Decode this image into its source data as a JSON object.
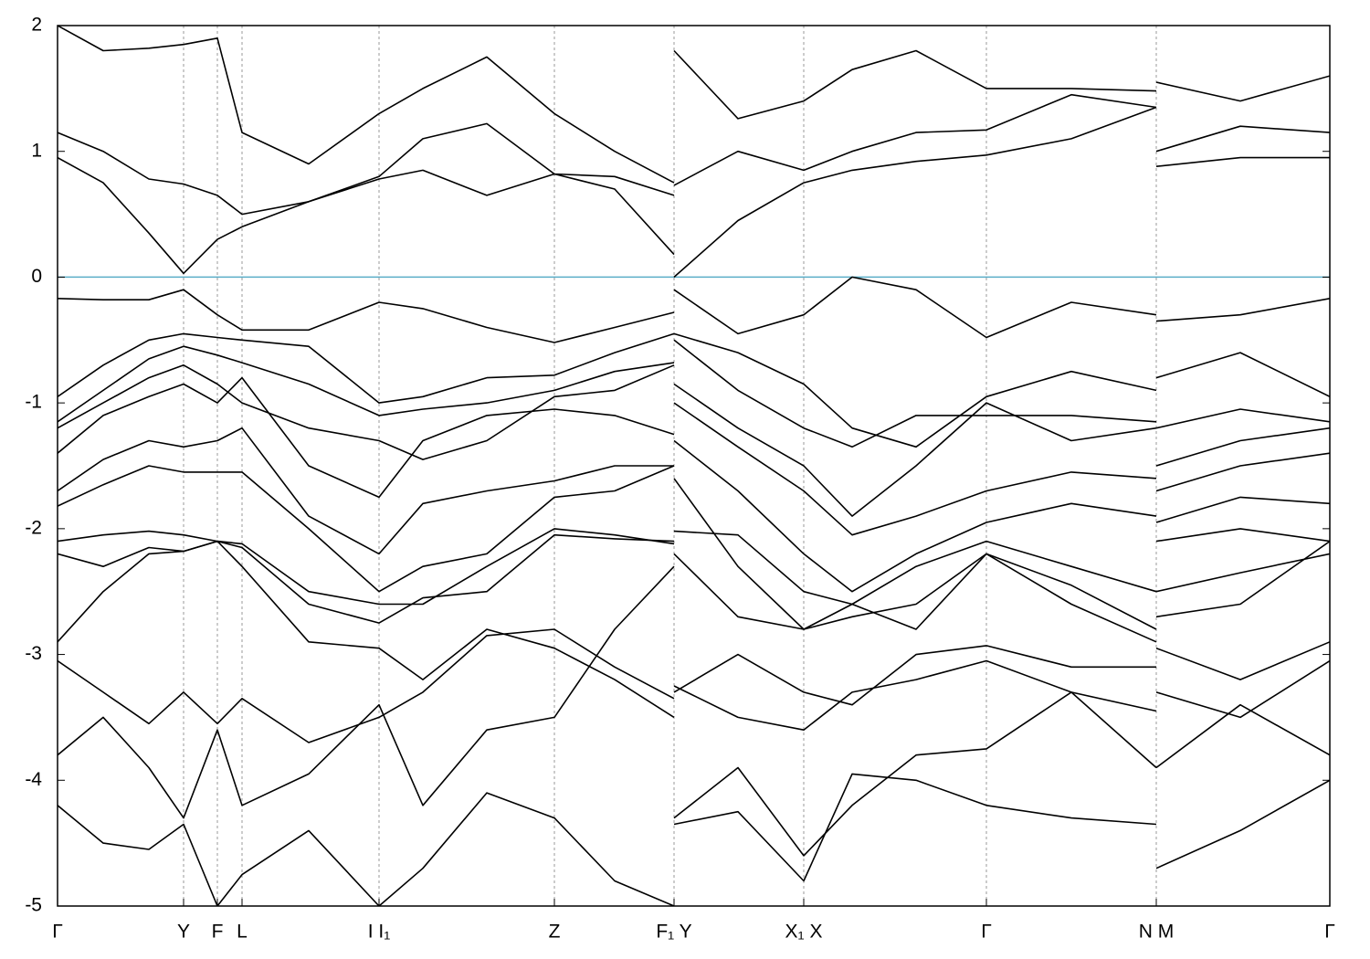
{
  "chart_data": {
    "type": "line",
    "x": [
      0,
      0.5,
      1.0,
      1.38,
      1.75,
      2.02,
      2.75,
      3.52,
      4.0,
      4.7,
      5.44,
      6.1,
      6.75,
      6.75,
      6.75,
      7.45,
      8.17,
      8.7,
      9.4,
      10.17,
      11.1,
      12.03,
      12.03,
      12.03,
      12.95,
      13.93
    ],
    "xlim": [
      0,
      13.93
    ],
    "xticks": [
      {
        "value": 0,
        "label": "Γ"
      },
      {
        "value": 1.38,
        "label": "Y"
      },
      {
        "value": 1.75,
        "label": "F"
      },
      {
        "value": 2.02,
        "label": "L"
      },
      {
        "value": 3.52,
        "label": "I I₁"
      },
      {
        "value": 5.44,
        "label": "Z"
      },
      {
        "value": 6.75,
        "label": "F₁ Y"
      },
      {
        "value": 8.17,
        "label": "X₁ X"
      },
      {
        "value": 10.17,
        "label": "Γ"
      },
      {
        "value": 12.03,
        "label": "N M"
      },
      {
        "value": 13.93,
        "label": "Γ"
      }
    ],
    "ylim": [
      -5,
      2
    ],
    "yticks": [
      -5,
      -4,
      -3,
      -2,
      -1,
      0,
      1,
      2
    ],
    "xgrid": true,
    "reference_line": {
      "y": 0,
      "color": "#5aaec8"
    },
    "series": [
      {
        "color": "#000000",
        "values": [
          2.0,
          1.8,
          1.82,
          1.85,
          1.9,
          1.15,
          0.9,
          1.3,
          1.5,
          1.75,
          1.3,
          1.0,
          0.75,
          null,
          1.8,
          1.26,
          1.4,
          1.65,
          1.8,
          1.5,
          1.5,
          1.48,
          null,
          1.55,
          1.4,
          1.6
        ]
      },
      {
        "color": "#000000",
        "values": [
          1.15,
          1.0,
          0.78,
          0.74,
          0.65,
          0.5,
          0.6,
          0.8,
          1.1,
          1.22,
          0.82,
          0.8,
          0.65,
          null,
          0.73,
          1.0,
          0.85,
          1.0,
          1.15,
          1.17,
          1.45,
          1.35,
          null,
          1.0,
          1.2,
          1.15
        ]
      },
      {
        "color": "#000000",
        "values": [
          0.95,
          0.75,
          0.35,
          0.03,
          0.3,
          0.4,
          0.6,
          0.78,
          0.85,
          0.65,
          0.82,
          0.7,
          0.18,
          null,
          0.0,
          0.45,
          0.75,
          0.85,
          0.92,
          0.97,
          1.1,
          1.35,
          null,
          0.88,
          0.95,
          0.95
        ]
      },
      {
        "color": "#000000",
        "values": [
          -0.17,
          -0.18,
          -0.18,
          -0.1,
          -0.3,
          -0.42,
          -0.42,
          -0.2,
          -0.25,
          -0.4,
          -0.52,
          -0.4,
          -0.28,
          null,
          -0.1,
          -0.45,
          -0.3,
          0.0,
          -0.1,
          -0.48,
          -0.2,
          -0.3,
          null,
          -0.35,
          -0.3,
          -0.17
        ]
      },
      {
        "color": "#000000",
        "values": [
          -0.95,
          -0.7,
          -0.5,
          -0.45,
          -0.48,
          -0.5,
          -0.55,
          -1.0,
          -0.95,
          -0.8,
          -0.78,
          -0.6,
          -0.45,
          null,
          -0.45,
          -0.6,
          -0.85,
          -1.2,
          -1.35,
          -0.95,
          -0.75,
          -0.9,
          null,
          -0.8,
          -0.6,
          -0.95
        ]
      },
      {
        "color": "#000000",
        "values": [
          -1.15,
          -0.9,
          -0.65,
          -0.55,
          -0.62,
          -0.68,
          -0.85,
          -1.1,
          -1.05,
          -1.0,
          -0.9,
          -0.75,
          -0.68,
          null,
          -0.5,
          -0.9,
          -1.2,
          -1.35,
          -1.1,
          -1.1,
          -1.1,
          -1.15,
          null,
          -1.2,
          -1.05,
          -1.15
        ]
      },
      {
        "color": "#000000",
        "values": [
          -1.2,
          -1.0,
          -0.8,
          -0.7,
          -0.85,
          -1.0,
          -1.2,
          -1.3,
          -1.45,
          -1.3,
          -0.95,
          -0.9,
          -0.7,
          null,
          -0.85,
          -1.2,
          -1.5,
          -1.9,
          -1.5,
          -1.0,
          -1.3,
          -1.2,
          null,
          -1.5,
          -1.3,
          -1.2
        ]
      },
      {
        "color": "#000000",
        "values": [
          -1.4,
          -1.1,
          -0.95,
          -0.85,
          -1.0,
          -0.8,
          -1.5,
          -1.75,
          -1.3,
          -1.1,
          -1.05,
          -1.1,
          -1.25,
          null,
          -1.0,
          -1.35,
          -1.7,
          -2.05,
          -1.9,
          -1.7,
          -1.55,
          -1.6,
          null,
          -1.7,
          -1.5,
          -1.4
        ]
      },
      {
        "color": "#000000",
        "values": [
          -1.7,
          -1.45,
          -1.3,
          -1.35,
          -1.3,
          -1.2,
          -1.9,
          -2.2,
          -1.8,
          -1.7,
          -1.62,
          -1.5,
          -1.5,
          null,
          -1.3,
          -1.7,
          -2.2,
          -2.5,
          -2.2,
          -1.95,
          -1.8,
          -1.9,
          null,
          -1.95,
          -1.75,
          -1.8
        ]
      },
      {
        "color": "#000000",
        "values": [
          -1.82,
          -1.65,
          -1.5,
          -1.55,
          -1.55,
          -1.55,
          -2.0,
          -2.5,
          -2.3,
          -2.2,
          -1.75,
          -1.7,
          -1.5,
          null,
          -1.6,
          -2.3,
          -2.8,
          -2.6,
          -2.3,
          -2.1,
          -2.3,
          -2.5,
          null,
          -2.1,
          -2.0,
          -2.1
        ]
      },
      {
        "color": "#000000",
        "values": [
          -2.1,
          -2.05,
          -2.02,
          -2.05,
          -2.1,
          -2.12,
          -2.5,
          -2.6,
          -2.6,
          -2.3,
          -2.0,
          -2.05,
          -2.12,
          null,
          -2.02,
          -2.05,
          -2.5,
          -2.6,
          -2.8,
          -2.2,
          -2.45,
          -2.8,
          null,
          -2.5,
          -2.35,
          -2.2
        ]
      },
      {
        "color": "#000000",
        "values": [
          -2.2,
          -2.3,
          -2.15,
          -2.18,
          -2.1,
          -2.15,
          -2.6,
          -2.75,
          -2.55,
          -2.5,
          -2.05,
          -2.08,
          -2.1,
          null,
          -2.2,
          -2.7,
          -2.8,
          -2.7,
          -2.6,
          -2.2,
          -2.6,
          -2.9,
          null,
          -2.7,
          -2.6,
          -2.1
        ]
      },
      {
        "color": "#000000",
        "values": [
          -2.9,
          -2.5,
          -2.2,
          -2.18,
          -2.1,
          -2.3,
          -2.9,
          -2.95,
          -3.2,
          -2.8,
          -2.95,
          -3.2,
          -3.5,
          null,
          -3.3,
          -3.0,
          -3.3,
          -3.4,
          -3.0,
          -2.93,
          -3.1,
          -3.1,
          null,
          -2.95,
          -3.2,
          -2.9
        ]
      },
      {
        "color": "#000000",
        "values": [
          -3.05,
          -3.3,
          -3.55,
          -3.3,
          -3.55,
          -3.35,
          -3.7,
          -3.5,
          -3.3,
          -2.85,
          -2.8,
          -3.1,
          -3.35,
          null,
          -3.25,
          -3.5,
          -3.6,
          -3.3,
          -3.2,
          -3.05,
          -3.3,
          -3.45,
          null,
          -3.3,
          -3.5,
          -3.05
        ]
      },
      {
        "color": "#000000",
        "values": [
          -3.8,
          -3.5,
          -3.9,
          -4.3,
          -3.6,
          -4.2,
          -3.95,
          -3.4,
          -4.2,
          -3.6,
          -3.5,
          -2.8,
          -2.3,
          null,
          -4.3,
          -3.9,
          -4.6,
          -4.2,
          -3.8,
          -3.75,
          -3.3,
          -3.9,
          null,
          -3.9,
          -3.4,
          -3.8
        ]
      },
      {
        "color": "#000000",
        "values": [
          -4.2,
          -4.5,
          -4.55,
          -4.35,
          -5.0,
          -4.75,
          -4.4,
          -5.0,
          -4.7,
          -4.1,
          -4.3,
          -4.8,
          -5.0,
          null,
          -4.35,
          -4.25,
          -4.8,
          -3.95,
          -4.0,
          -4.2,
          -4.3,
          -4.35,
          null,
          -4.7,
          -4.4,
          -4.0
        ]
      }
    ]
  }
}
